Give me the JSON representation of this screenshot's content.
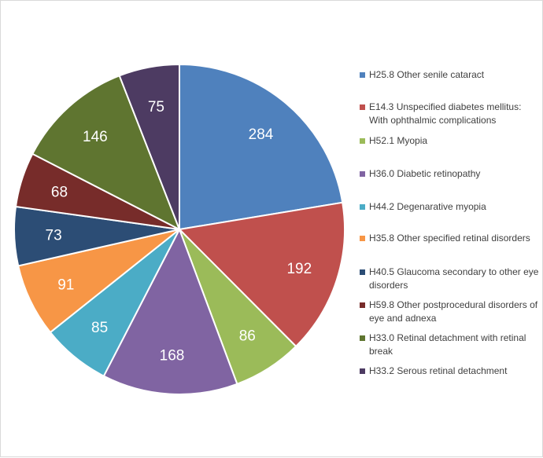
{
  "chart_data": {
    "type": "pie",
    "title": "",
    "legend_position": "right",
    "slices": [
      {
        "label": "H25.8 Other senile cataract",
        "value": 284,
        "color": "#4F81BD"
      },
      {
        "label": "E14.3 Unspecified diabetes mellitus: With ophthalmic complications",
        "value": 192,
        "color": "#C0504D"
      },
      {
        "label": "H52.1 Myopia",
        "value": 86,
        "color": "#9BBB59"
      },
      {
        "label": "H36.0 Diabetic retinopathy",
        "value": 168,
        "color": "#8064A2"
      },
      {
        "label": "H44.2 Degenarative myopia",
        "value": 85,
        "color": "#4BACC6"
      },
      {
        "label": "H35.8 Other specified retinal disorders",
        "value": 91,
        "color": "#F79646"
      },
      {
        "label": "H40.5 Glaucoma secondary to other eye disorders",
        "value": 73,
        "color": "#2C4D75"
      },
      {
        "label": "H59.8 Other postprocedural disorders of eye and adnexa",
        "value": 68,
        "color": "#772C2A"
      },
      {
        "label": "H33.0 Retinal detachment with retinal break",
        "value": 146,
        "color": "#5F7530"
      },
      {
        "label": "H33.2 Serous retinal detachment",
        "value": 75,
        "color": "#4D3B62"
      }
    ]
  }
}
